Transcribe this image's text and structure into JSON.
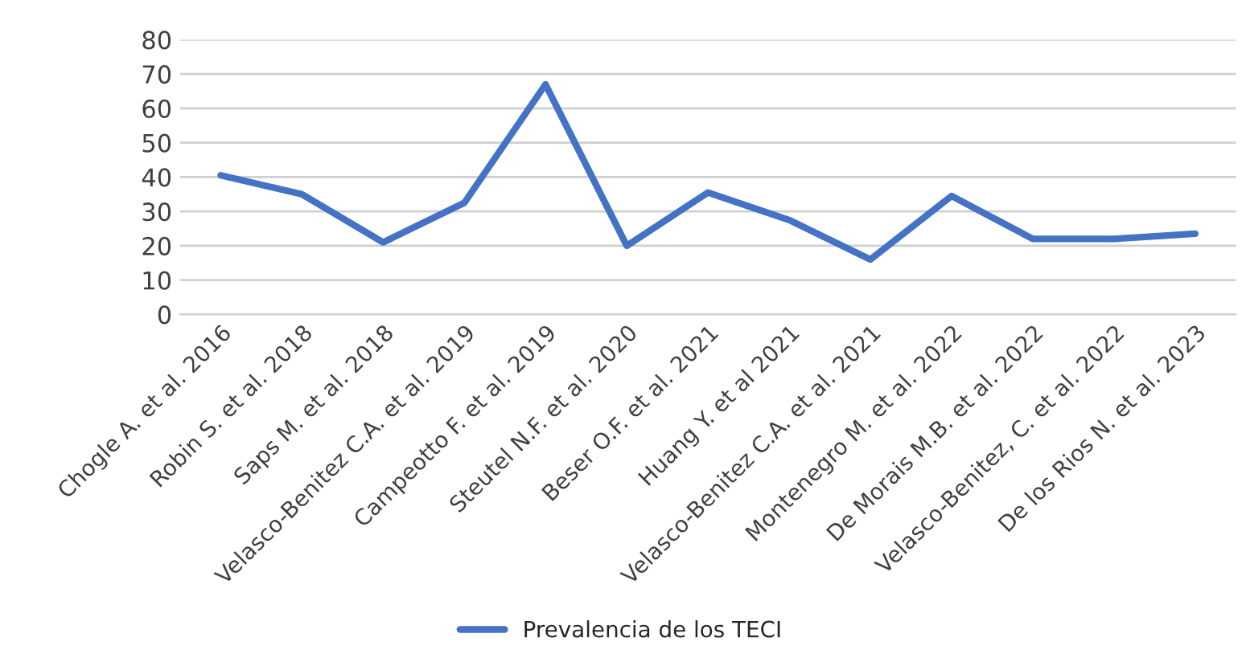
{
  "chart_data": {
    "type": "line",
    "categories": [
      "Chogle A. et al. 2016",
      "Robin S. et al. 2018",
      "Saps M. et al. 2018",
      "Velasco-Benitez C.A. et al. 2019",
      "Campeotto F. et al. 2019",
      "Steutel N.F. et al. 2020",
      "Beser O.F. et al. 2021",
      "Huang Y. et al 2021",
      "Velasco-Benitez C.A. et al. 2021",
      "Montenegro M. et al. 2022",
      "De Morais M.B. et al. 2022",
      "Velasco-Benitez, C. et al. 2022",
      "De los Rios N. et al. 2023"
    ],
    "series": [
      {
        "name": "Prevalencia de los TECI",
        "color": "#4472c4",
        "values": [
          40.5,
          35,
          21,
          32.5,
          67,
          20,
          35.5,
          27.5,
          16,
          34.5,
          22,
          22,
          23.5
        ]
      }
    ],
    "ylim": [
      0,
      80
    ],
    "yticks": [
      0,
      10,
      20,
      30,
      40,
      50,
      60,
      70,
      80
    ],
    "grid": "y",
    "legend": "bottom",
    "marker": "none",
    "line_style": "solid"
  }
}
